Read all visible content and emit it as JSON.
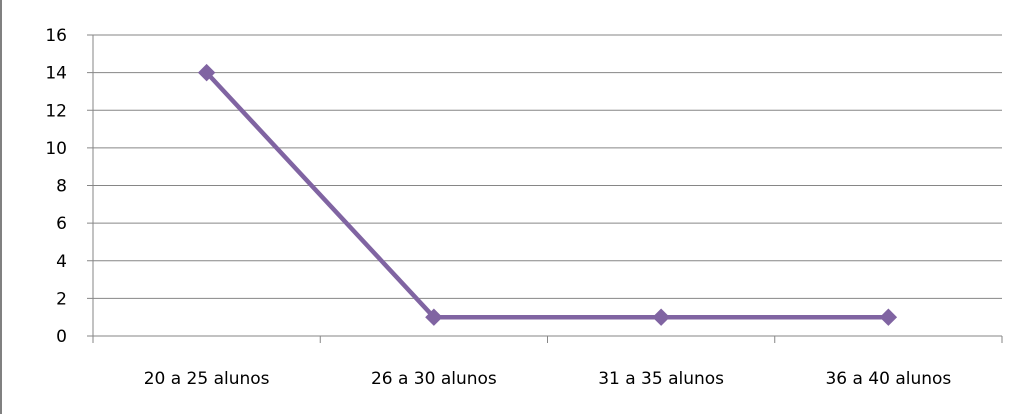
{
  "chart_data": {
    "type": "line",
    "title": "",
    "xlabel": "",
    "ylabel": "",
    "categories": [
      "20 a 25 alunos",
      "26 a 30 alunos",
      "31 a 35 alunos",
      "36 a 40 alunos"
    ],
    "series": [
      {
        "values": [
          14,
          1,
          1,
          1
        ],
        "color": "#8064a2"
      }
    ],
    "ylim": [
      0,
      16
    ],
    "yticks": [
      "0",
      "2",
      "4",
      "6",
      "8",
      "10",
      "12",
      "14",
      "16"
    ],
    "grid": true,
    "legend": "none"
  }
}
